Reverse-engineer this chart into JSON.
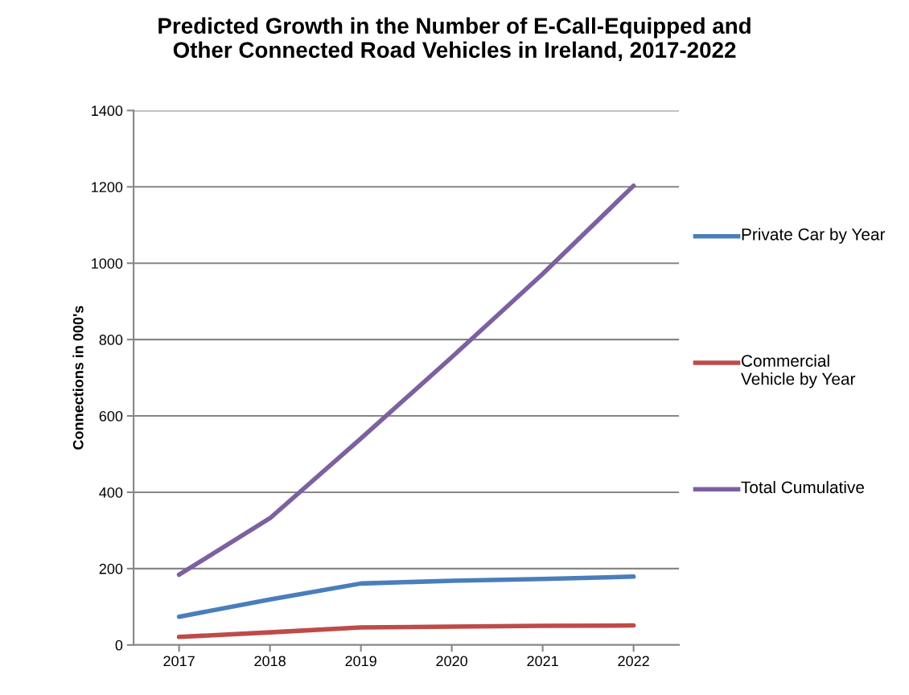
{
  "chart_data": {
    "type": "line",
    "title": "Predicted Growth in the Number of E-Call-Equipped and\nOther Connected Road Vehicles in Ireland, 2017-2022",
    "ylabel": "Connections in 000's",
    "categories": [
      "2017",
      "2018",
      "2019",
      "2020",
      "2021",
      "2022"
    ],
    "series": [
      {
        "name": "Private Car by Year",
        "color": "#4a7ebb",
        "values": [
          74,
          119,
          161,
          168,
          173,
          179
        ]
      },
      {
        "name": "Commercial Vehicle by Year",
        "color": "#be4b48",
        "values": [
          21,
          33,
          46,
          48,
          50,
          51
        ]
      },
      {
        "name": "Total Cumulative",
        "color": "#7d60a0",
        "values": [
          184,
          332,
          541,
          754,
          972,
          1203
        ]
      }
    ],
    "ylim": [
      0,
      1400
    ],
    "yticks": [
      0,
      200,
      400,
      600,
      800,
      1000,
      1200,
      1400
    ],
    "grid": "y",
    "legend": "right",
    "marker": "none",
    "line_style": "solid"
  }
}
